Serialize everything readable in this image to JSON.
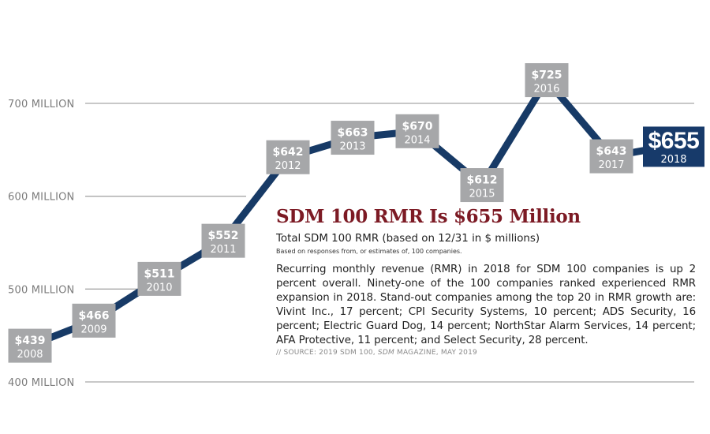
{
  "chart_data": {
    "type": "line",
    "title": "SDM 100 RMR Is $655 Million",
    "subtitle": "Total SDM 100 RMR (based on 12/31 in $ millions)",
    "xlabel": "",
    "ylabel": "",
    "ylim": [
      400,
      730
    ],
    "grid": true,
    "y_ticks": [
      {
        "value": 700,
        "label": "700 MILLION"
      },
      {
        "value": 600,
        "label": "600 MILLION"
      },
      {
        "value": 500,
        "label": "500 MILLION"
      },
      {
        "value": 400,
        "label": "400 MILLION"
      }
    ],
    "categories": [
      "2008",
      "2009",
      "2010",
      "2011",
      "2012",
      "2013",
      "2014",
      "2015",
      "2016",
      "2017",
      "2018"
    ],
    "values": [
      439,
      466,
      511,
      552,
      642,
      663,
      670,
      612,
      725,
      643,
      655
    ],
    "data_labels": [
      "$439",
      "$466",
      "$511",
      "$552",
      "$642",
      "$663",
      "$670",
      "$612",
      "$725",
      "$643",
      "$655"
    ],
    "highlight_index": 10,
    "colors": {
      "line": "#173a66",
      "box": "#a6a7a9",
      "highlight_box": "#173a6a",
      "title": "#7c1a24",
      "grid": "#a8a8a8"
    }
  },
  "text": {
    "title": "SDM 100 RMR Is $655 Million",
    "subtitle": "Total SDM 100 RMR (based on 12/31 in $ millions)",
    "note": "Based on responses from, or estimates of, 100 companies.",
    "body": "Recurring monthly revenue (RMR) in 2018 for SDM 100 companies is up 2 percent overall. Ninety-one of the 100 companies ranked experienced RMR expansion in 2018.  Stand-out companies among the top 20 in RMR growth are: Vivint Inc., 17 percent; CPI Security Systems, 10 percent; ADS Security, 16 percent; Electric Guard Dog, 14 percent; NorthStar Alarm Services, 14 percent; AFA Protective, 11 percent; and Select Security, 28 percent.",
    "source_prefix": "// SOURCE: 2019 SDM 100, ",
    "source_italic": "SDM",
    "source_suffix": " MAGAZINE, MAY 2019"
  }
}
